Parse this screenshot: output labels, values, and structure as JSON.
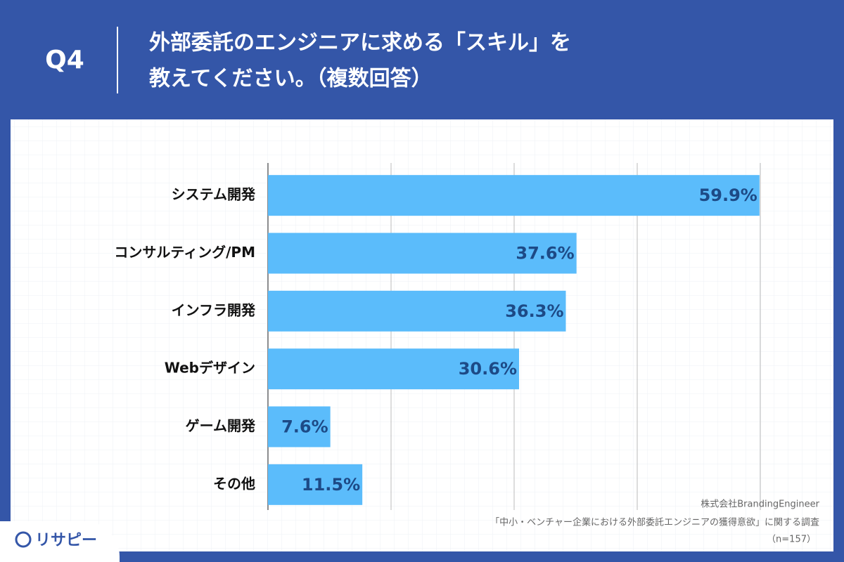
{
  "header": {
    "question": "Q4",
    "title_lines": [
      "外部委託のエンジニアに求める「スキル」を",
      "教えてください。（複数回答）"
    ]
  },
  "chart_data": {
    "type": "hbar",
    "categories": [
      "システム開発",
      "コンサルティング/PM",
      "インフラ開発",
      "Webデザイン",
      "ゲーム開発",
      "その他"
    ],
    "values": [
      59.9,
      37.6,
      36.3,
      30.6,
      7.6,
      11.5
    ],
    "value_labels": [
      "59.9%",
      "37.6%",
      "36.3%",
      "30.6%",
      "7.6%",
      "11.5%"
    ],
    "color": "#5bbcfb",
    "xlim": [
      0,
      60
    ],
    "xticks": [
      0,
      15,
      30,
      45,
      60
    ],
    "grid": true
  },
  "source": [
    "株式会社BrandingEngineer",
    "「中小・ベンチャー企業における外部委託エンジニアの獲得意欲」に関する調査",
    "（n=157）"
  ],
  "logo": "リサピー"
}
